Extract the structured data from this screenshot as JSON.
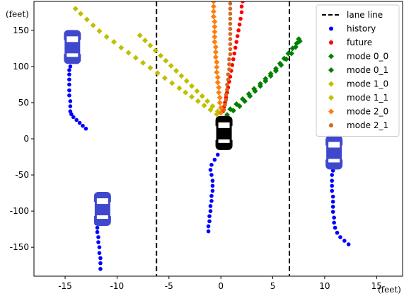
{
  "chart_data": {
    "type": "scatter",
    "x_unit": "(feet)",
    "y_unit": "(feet)",
    "xlim": [
      -18,
      17.5
    ],
    "ylim": [
      -190,
      190
    ],
    "x_ticks": [
      -15,
      -10,
      -5,
      0,
      5,
      10,
      15
    ],
    "y_ticks": [
      150,
      100,
      50,
      0,
      -50,
      -100,
      -150
    ],
    "grid": false,
    "legend_position": "top-right",
    "lane_lines": {
      "name": "lane line",
      "color": "#000000",
      "style": "dashed",
      "x": [
        -6.2,
        6.6
      ]
    },
    "series": [
      {
        "name": "history",
        "marker": "circle",
        "color": "#0000ff",
        "points": [
          [
            -13.0,
            14
          ],
          [
            -13.3,
            18
          ],
          [
            -13.6,
            22
          ],
          [
            -13.9,
            26
          ],
          [
            -14.2,
            30
          ],
          [
            -14.4,
            34
          ],
          [
            -14.5,
            38
          ],
          [
            -14.5,
            45
          ],
          [
            -14.5,
            52
          ],
          [
            -14.6,
            60
          ],
          [
            -14.6,
            67
          ],
          [
            -14.6,
            75
          ],
          [
            -14.6,
            82
          ],
          [
            -14.6,
            89
          ],
          [
            -14.6,
            95
          ],
          [
            -14.5,
            100
          ],
          [
            -11.6,
            -180
          ],
          [
            -11.6,
            -172
          ],
          [
            -11.6,
            -165
          ],
          [
            -11.7,
            -158
          ],
          [
            -11.7,
            -150
          ],
          [
            -11.8,
            -143
          ],
          [
            -11.8,
            -136
          ],
          [
            -11.9,
            -129
          ],
          [
            -11.9,
            -123
          ],
          [
            -12.0,
            -117
          ],
          [
            -12.0,
            -111
          ],
          [
            12.3,
            -146
          ],
          [
            11.9,
            -141
          ],
          [
            11.5,
            -136
          ],
          [
            11.2,
            -130
          ],
          [
            11.0,
            -123
          ],
          [
            10.9,
            -116
          ],
          [
            10.9,
            -109
          ],
          [
            10.8,
            -101
          ],
          [
            10.8,
            -94
          ],
          [
            10.8,
            -87
          ],
          [
            10.8,
            -80
          ],
          [
            10.7,
            -72
          ],
          [
            10.7,
            -65
          ],
          [
            10.7,
            -58
          ],
          [
            10.7,
            -50
          ],
          [
            10.8,
            -44
          ],
          [
            10.8,
            -40
          ],
          [
            -1.2,
            -128
          ],
          [
            -1.2,
            -121
          ],
          [
            -1.1,
            -114
          ],
          [
            -1.1,
            -107
          ],
          [
            -1.0,
            -100
          ],
          [
            -1.0,
            -93
          ],
          [
            -0.9,
            -86
          ],
          [
            -0.9,
            -79
          ],
          [
            -0.8,
            -72
          ],
          [
            -0.8,
            -65
          ],
          [
            -0.8,
            -58
          ],
          [
            -0.9,
            -50
          ],
          [
            -1.0,
            -43
          ],
          [
            -0.9,
            -36
          ],
          [
            -0.6,
            -29
          ],
          [
            -0.3,
            -22
          ]
        ]
      },
      {
        "name": "future",
        "marker": "circle",
        "color": "#ff0000",
        "points": [
          [
            0.2,
            38
          ],
          [
            0.3,
            44
          ],
          [
            0.4,
            50
          ],
          [
            0.5,
            57
          ],
          [
            0.6,
            64
          ],
          [
            0.7,
            71
          ],
          [
            0.8,
            79
          ],
          [
            0.9,
            86
          ],
          [
            1.0,
            94
          ],
          [
            1.1,
            102
          ],
          [
            1.2,
            110
          ],
          [
            1.3,
            118
          ],
          [
            1.4,
            126
          ],
          [
            1.5,
            134
          ],
          [
            1.6,
            142
          ],
          [
            1.7,
            150
          ],
          [
            1.8,
            158
          ],
          [
            1.9,
            166
          ],
          [
            2.0,
            175
          ],
          [
            2.0,
            183
          ],
          [
            2.1,
            190
          ]
        ]
      },
      {
        "name": "mode 0_0",
        "marker": "diamond",
        "color": "#008000",
        "points": [
          [
            0.6,
            33
          ],
          [
            1.2,
            39
          ],
          [
            1.8,
            45
          ],
          [
            2.3,
            52
          ],
          [
            2.8,
            59
          ],
          [
            3.3,
            66
          ],
          [
            3.8,
            73
          ],
          [
            4.3,
            80
          ],
          [
            4.8,
            87
          ],
          [
            5.3,
            94
          ],
          [
            5.8,
            102
          ],
          [
            6.3,
            110
          ],
          [
            6.8,
            118
          ],
          [
            7.2,
            127
          ],
          [
            7.6,
            135
          ]
        ]
      },
      {
        "name": "mode 0_1",
        "marker": "diamond",
        "color": "#008000",
        "points": [
          [
            0.9,
            41
          ],
          [
            1.5,
            48
          ],
          [
            2.1,
            55
          ],
          [
            2.7,
            62
          ],
          [
            3.2,
            69
          ],
          [
            3.8,
            76
          ],
          [
            4.3,
            83
          ],
          [
            4.8,
            90
          ],
          [
            5.3,
            97
          ],
          [
            5.7,
            104
          ],
          [
            6.1,
            111
          ],
          [
            6.5,
            118
          ],
          [
            6.9,
            125
          ],
          [
            7.3,
            132
          ],
          [
            7.5,
            138
          ]
        ]
      },
      {
        "name": "mode 1_0",
        "marker": "diamond",
        "color": "#bfbf00",
        "points": [
          [
            -0.4,
            34
          ],
          [
            -1.0,
            40
          ],
          [
            -1.6,
            46
          ],
          [
            -2.2,
            52
          ],
          [
            -2.8,
            58
          ],
          [
            -3.4,
            64
          ],
          [
            -4.0,
            70
          ],
          [
            -4.7,
            77
          ],
          [
            -5.4,
            84
          ],
          [
            -6.1,
            91
          ],
          [
            -6.8,
            98
          ],
          [
            -7.5,
            105
          ],
          [
            -8.2,
            112
          ],
          [
            -8.9,
            119
          ],
          [
            -9.6,
            126
          ],
          [
            -10.3,
            134
          ],
          [
            -11.0,
            141
          ],
          [
            -11.7,
            149
          ],
          [
            -12.3,
            157
          ],
          [
            -12.9,
            165
          ],
          [
            -13.5,
            173
          ],
          [
            -14.0,
            180
          ]
        ]
      },
      {
        "name": "mode 1_1",
        "marker": "diamond",
        "color": "#bfbf00",
        "points": [
          [
            -0.3,
            38
          ],
          [
            -0.8,
            45
          ],
          [
            -1.3,
            52
          ],
          [
            -1.8,
            59
          ],
          [
            -2.3,
            66
          ],
          [
            -2.8,
            73
          ],
          [
            -3.3,
            80
          ],
          [
            -3.8,
            87
          ],
          [
            -4.3,
            94
          ],
          [
            -4.8,
            101
          ],
          [
            -5.3,
            108
          ],
          [
            -5.8,
            115
          ],
          [
            -6.3,
            122
          ],
          [
            -6.8,
            129
          ],
          [
            -7.3,
            136
          ],
          [
            -7.8,
            143
          ]
        ]
      },
      {
        "name": "mode 2_0",
        "marker": "diamond",
        "color": "#ff7f0e",
        "points": [
          [
            0.0,
            36
          ],
          [
            0.0,
            43
          ],
          [
            -0.1,
            50
          ],
          [
            -0.1,
            57
          ],
          [
            -0.2,
            64
          ],
          [
            -0.2,
            71
          ],
          [
            -0.3,
            78
          ],
          [
            -0.3,
            85
          ],
          [
            -0.4,
            92
          ],
          [
            -0.4,
            99
          ],
          [
            -0.4,
            106
          ],
          [
            -0.5,
            113
          ],
          [
            -0.5,
            120
          ],
          [
            -0.5,
            127
          ],
          [
            -0.6,
            134
          ],
          [
            -0.6,
            141
          ],
          [
            -0.6,
            148
          ],
          [
            -0.6,
            155
          ],
          [
            -0.6,
            162
          ],
          [
            -0.7,
            169
          ],
          [
            -0.7,
            176
          ],
          [
            -0.7,
            183
          ],
          [
            -0.7,
            190
          ]
        ]
      },
      {
        "name": "mode 2_1",
        "marker": "circle",
        "color": "#d2691e",
        "points": [
          [
            0.3,
            40
          ],
          [
            0.4,
            47
          ],
          [
            0.5,
            54
          ],
          [
            0.5,
            61
          ],
          [
            0.6,
            68
          ],
          [
            0.6,
            75
          ],
          [
            0.7,
            82
          ],
          [
            0.7,
            89
          ],
          [
            0.8,
            96
          ],
          [
            0.8,
            103
          ],
          [
            0.8,
            110
          ],
          [
            0.9,
            117
          ],
          [
            0.9,
            124
          ],
          [
            0.9,
            131
          ],
          [
            0.9,
            138
          ],
          [
            0.9,
            145
          ],
          [
            0.9,
            152
          ],
          [
            0.9,
            159
          ],
          [
            0.9,
            166
          ],
          [
            0.9,
            173
          ],
          [
            0.9,
            180
          ],
          [
            0.9,
            187
          ]
        ]
      }
    ],
    "vehicles": [
      {
        "role": "agent",
        "color": "#000000",
        "x": 0.3,
        "y": 8
      },
      {
        "role": "neighbor",
        "color": "#3f48cc",
        "x": -14.3,
        "y": 127
      },
      {
        "role": "neighbor",
        "color": "#3f48cc",
        "x": -11.4,
        "y": -97
      },
      {
        "role": "neighbor",
        "color": "#3f48cc",
        "x": 10.9,
        "y": -19
      }
    ]
  }
}
